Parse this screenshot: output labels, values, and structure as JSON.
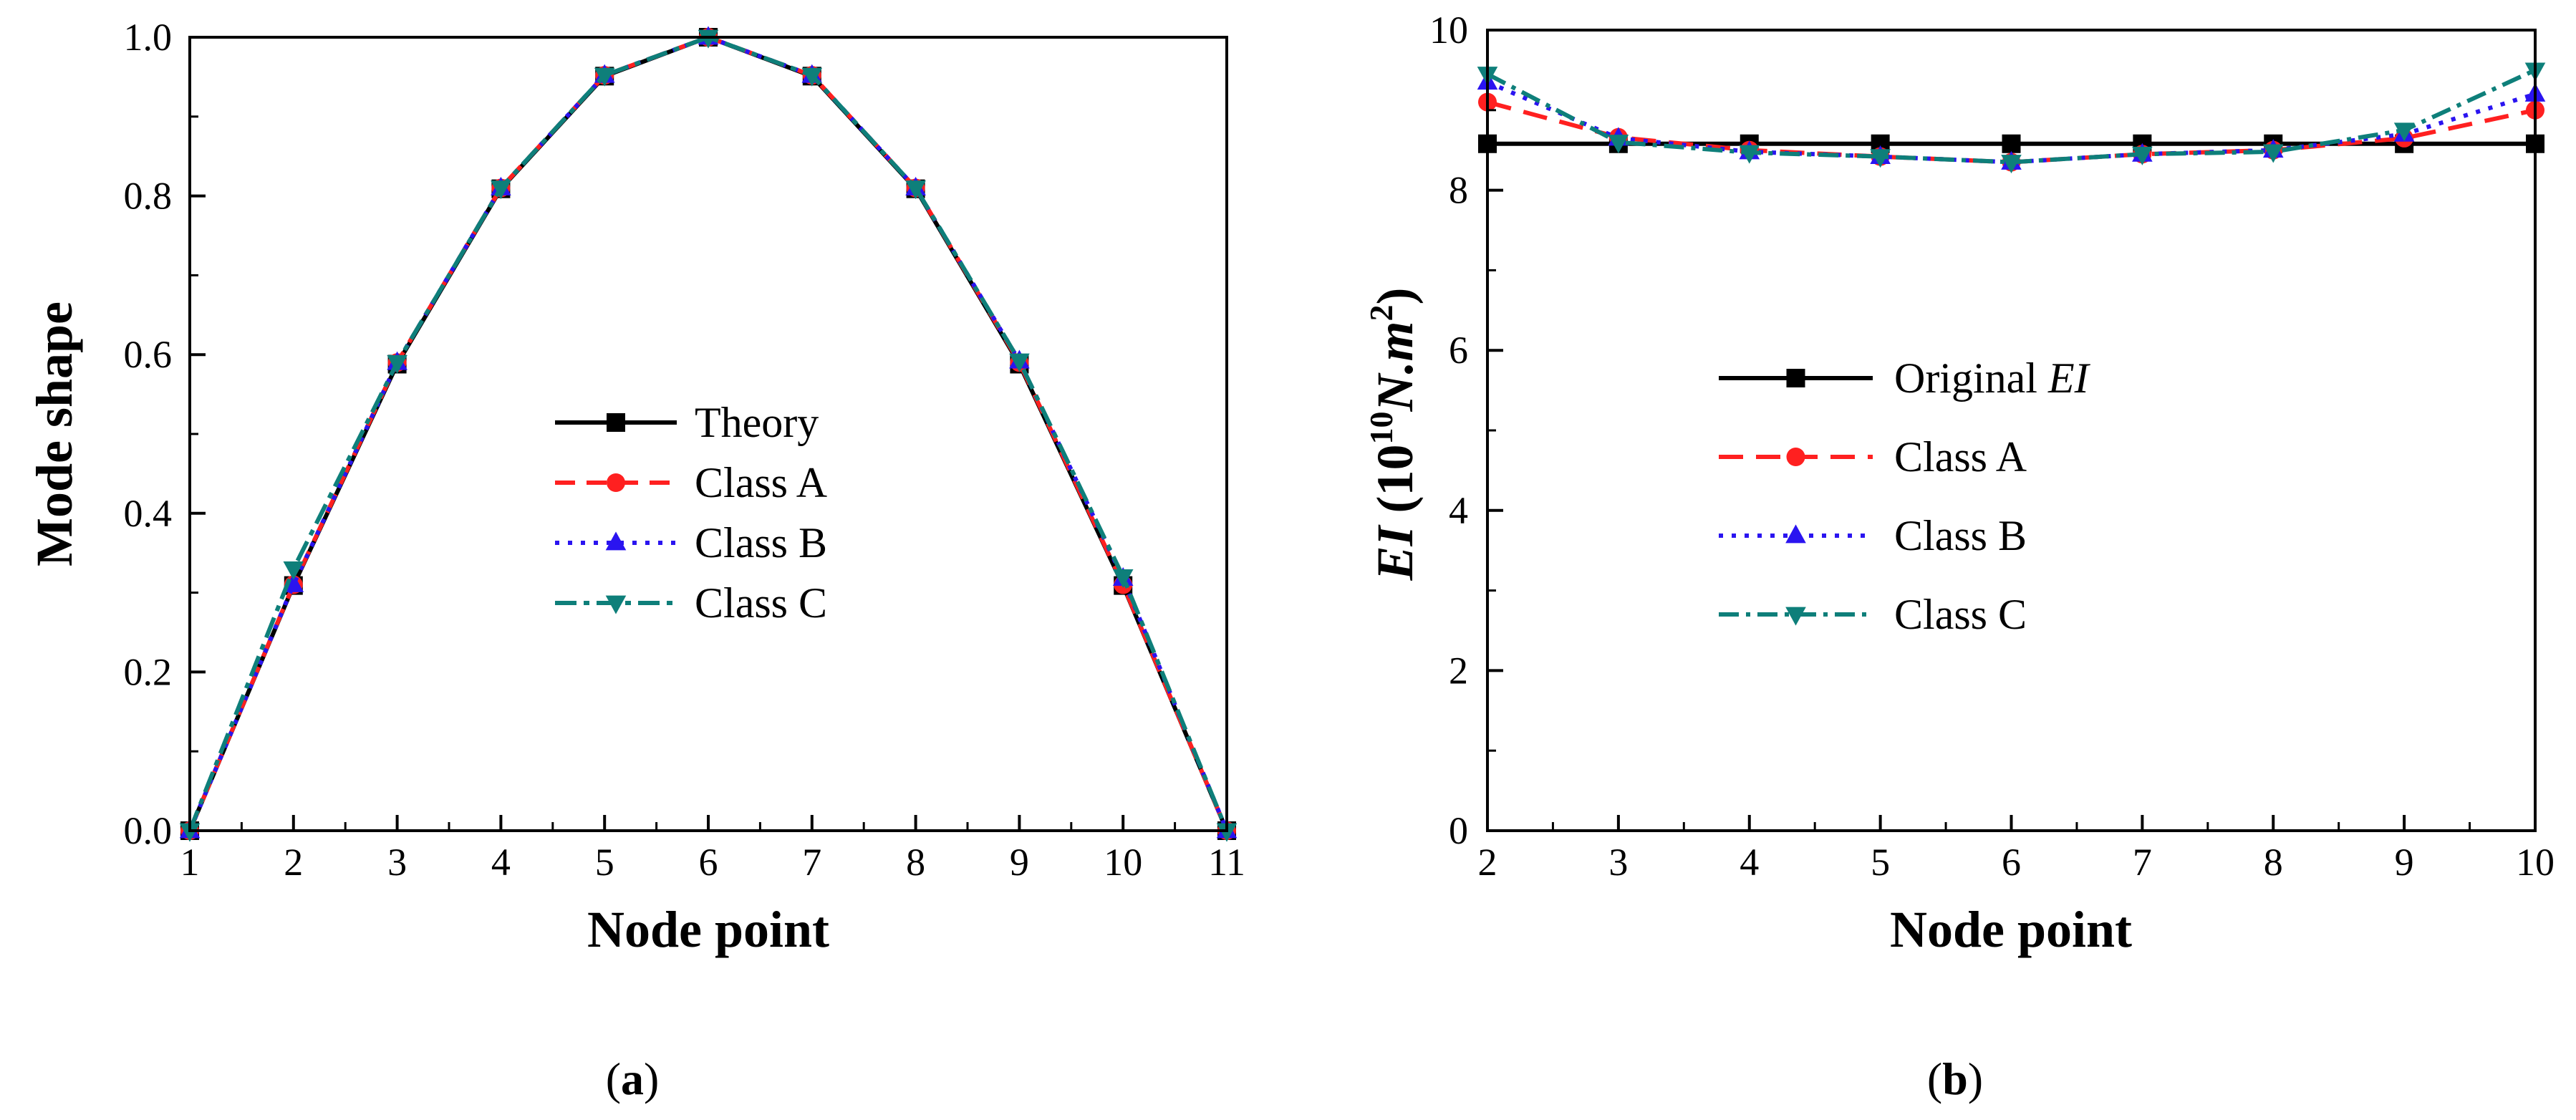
{
  "chart_data": [
    {
      "type": "line",
      "panel_label": "a",
      "xlabel": "Node point",
      "ylabel": "Mode shape",
      "xlim": [
        1,
        11
      ],
      "ylim": [
        0,
        1.0
      ],
      "xticks": [
        1,
        2,
        3,
        4,
        5,
        6,
        7,
        8,
        9,
        10,
        11
      ],
      "yticks": [
        "0.0",
        "0.2",
        "0.4",
        "0.6",
        "0.8",
        "1.0"
      ],
      "grid": false,
      "legend_position": "center",
      "x": [
        1,
        2,
        3,
        4,
        5,
        6,
        7,
        8,
        9,
        10,
        11
      ],
      "series": [
        {
          "name": "Theory",
          "label_plain": "Theory",
          "color": "#000000",
          "dash": "",
          "marker": "square",
          "values": [
            0.0,
            0.309,
            0.588,
            0.809,
            0.951,
            1.0,
            0.951,
            0.809,
            0.588,
            0.309,
            0.0
          ]
        },
        {
          "name": "Class A",
          "label_plain": "Class A",
          "color": "#ff2020",
          "dash": "28 16",
          "marker": "circle",
          "values": [
            0.0,
            0.31,
            0.59,
            0.81,
            0.952,
            1.0,
            0.952,
            0.81,
            0.59,
            0.31,
            0.0
          ]
        },
        {
          "name": "Class B",
          "label_plain": "Class B",
          "color": "#2a14f0",
          "dash": "6 12",
          "marker": "triangle-up",
          "values": [
            0.0,
            0.31,
            0.59,
            0.81,
            0.952,
            1.0,
            0.952,
            0.81,
            0.592,
            0.318,
            0.0
          ]
        },
        {
          "name": "Class C",
          "label_plain": "Class C",
          "color": "#0e7f7a",
          "dash": "30 10 8 10",
          "marker": "triangle-down",
          "values": [
            0.0,
            0.33,
            0.59,
            0.81,
            0.952,
            1.0,
            0.952,
            0.81,
            0.592,
            0.32,
            0.0
          ]
        }
      ]
    },
    {
      "type": "line",
      "panel_label": "b",
      "xlabel": "Node point",
      "ylabel_prefix": "EI",
      "ylabel_open": " (10",
      "ylabel_sup1": "10",
      "ylabel_unit": "N.m",
      "ylabel_sup2": "2",
      "ylabel_close": ")",
      "xlim": [
        2,
        10
      ],
      "ylim": [
        0,
        10
      ],
      "xticks": [
        2,
        3,
        4,
        5,
        6,
        7,
        8,
        9,
        10
      ],
      "yticks": [
        "0",
        "2",
        "4",
        "6",
        "8",
        "10"
      ],
      "grid": false,
      "legend_position": "center",
      "x": [
        2,
        3,
        4,
        5,
        6,
        7,
        8,
        9,
        10
      ],
      "series": [
        {
          "name": "Original",
          "label_plain": "Original",
          "label_italic": "EI",
          "color": "#000000",
          "dash": "",
          "marker": "square",
          "values": [
            8.58,
            8.58,
            8.58,
            8.58,
            8.58,
            8.58,
            8.58,
            8.58,
            8.58
          ]
        },
        {
          "name": "Class A",
          "label_plain": "Class A",
          "color": "#ff2020",
          "dash": "34 18",
          "marker": "circle",
          "values": [
            9.1,
            8.66,
            8.5,
            8.42,
            8.35,
            8.45,
            8.5,
            8.65,
            9.0
          ]
        },
        {
          "name": "Class B",
          "label_plain": "Class B",
          "color": "#2a14f0",
          "dash": "6 12",
          "marker": "triangle-up",
          "values": [
            9.35,
            8.65,
            8.48,
            8.42,
            8.35,
            8.45,
            8.5,
            8.7,
            9.2
          ]
        },
        {
          "name": "Class C",
          "label_plain": "Class C",
          "color": "#0e7f7a",
          "dash": "28 10 6 10",
          "marker": "triangle-down",
          "values": [
            9.45,
            8.6,
            8.47,
            8.42,
            8.35,
            8.45,
            8.48,
            8.75,
            9.5
          ]
        }
      ]
    }
  ]
}
